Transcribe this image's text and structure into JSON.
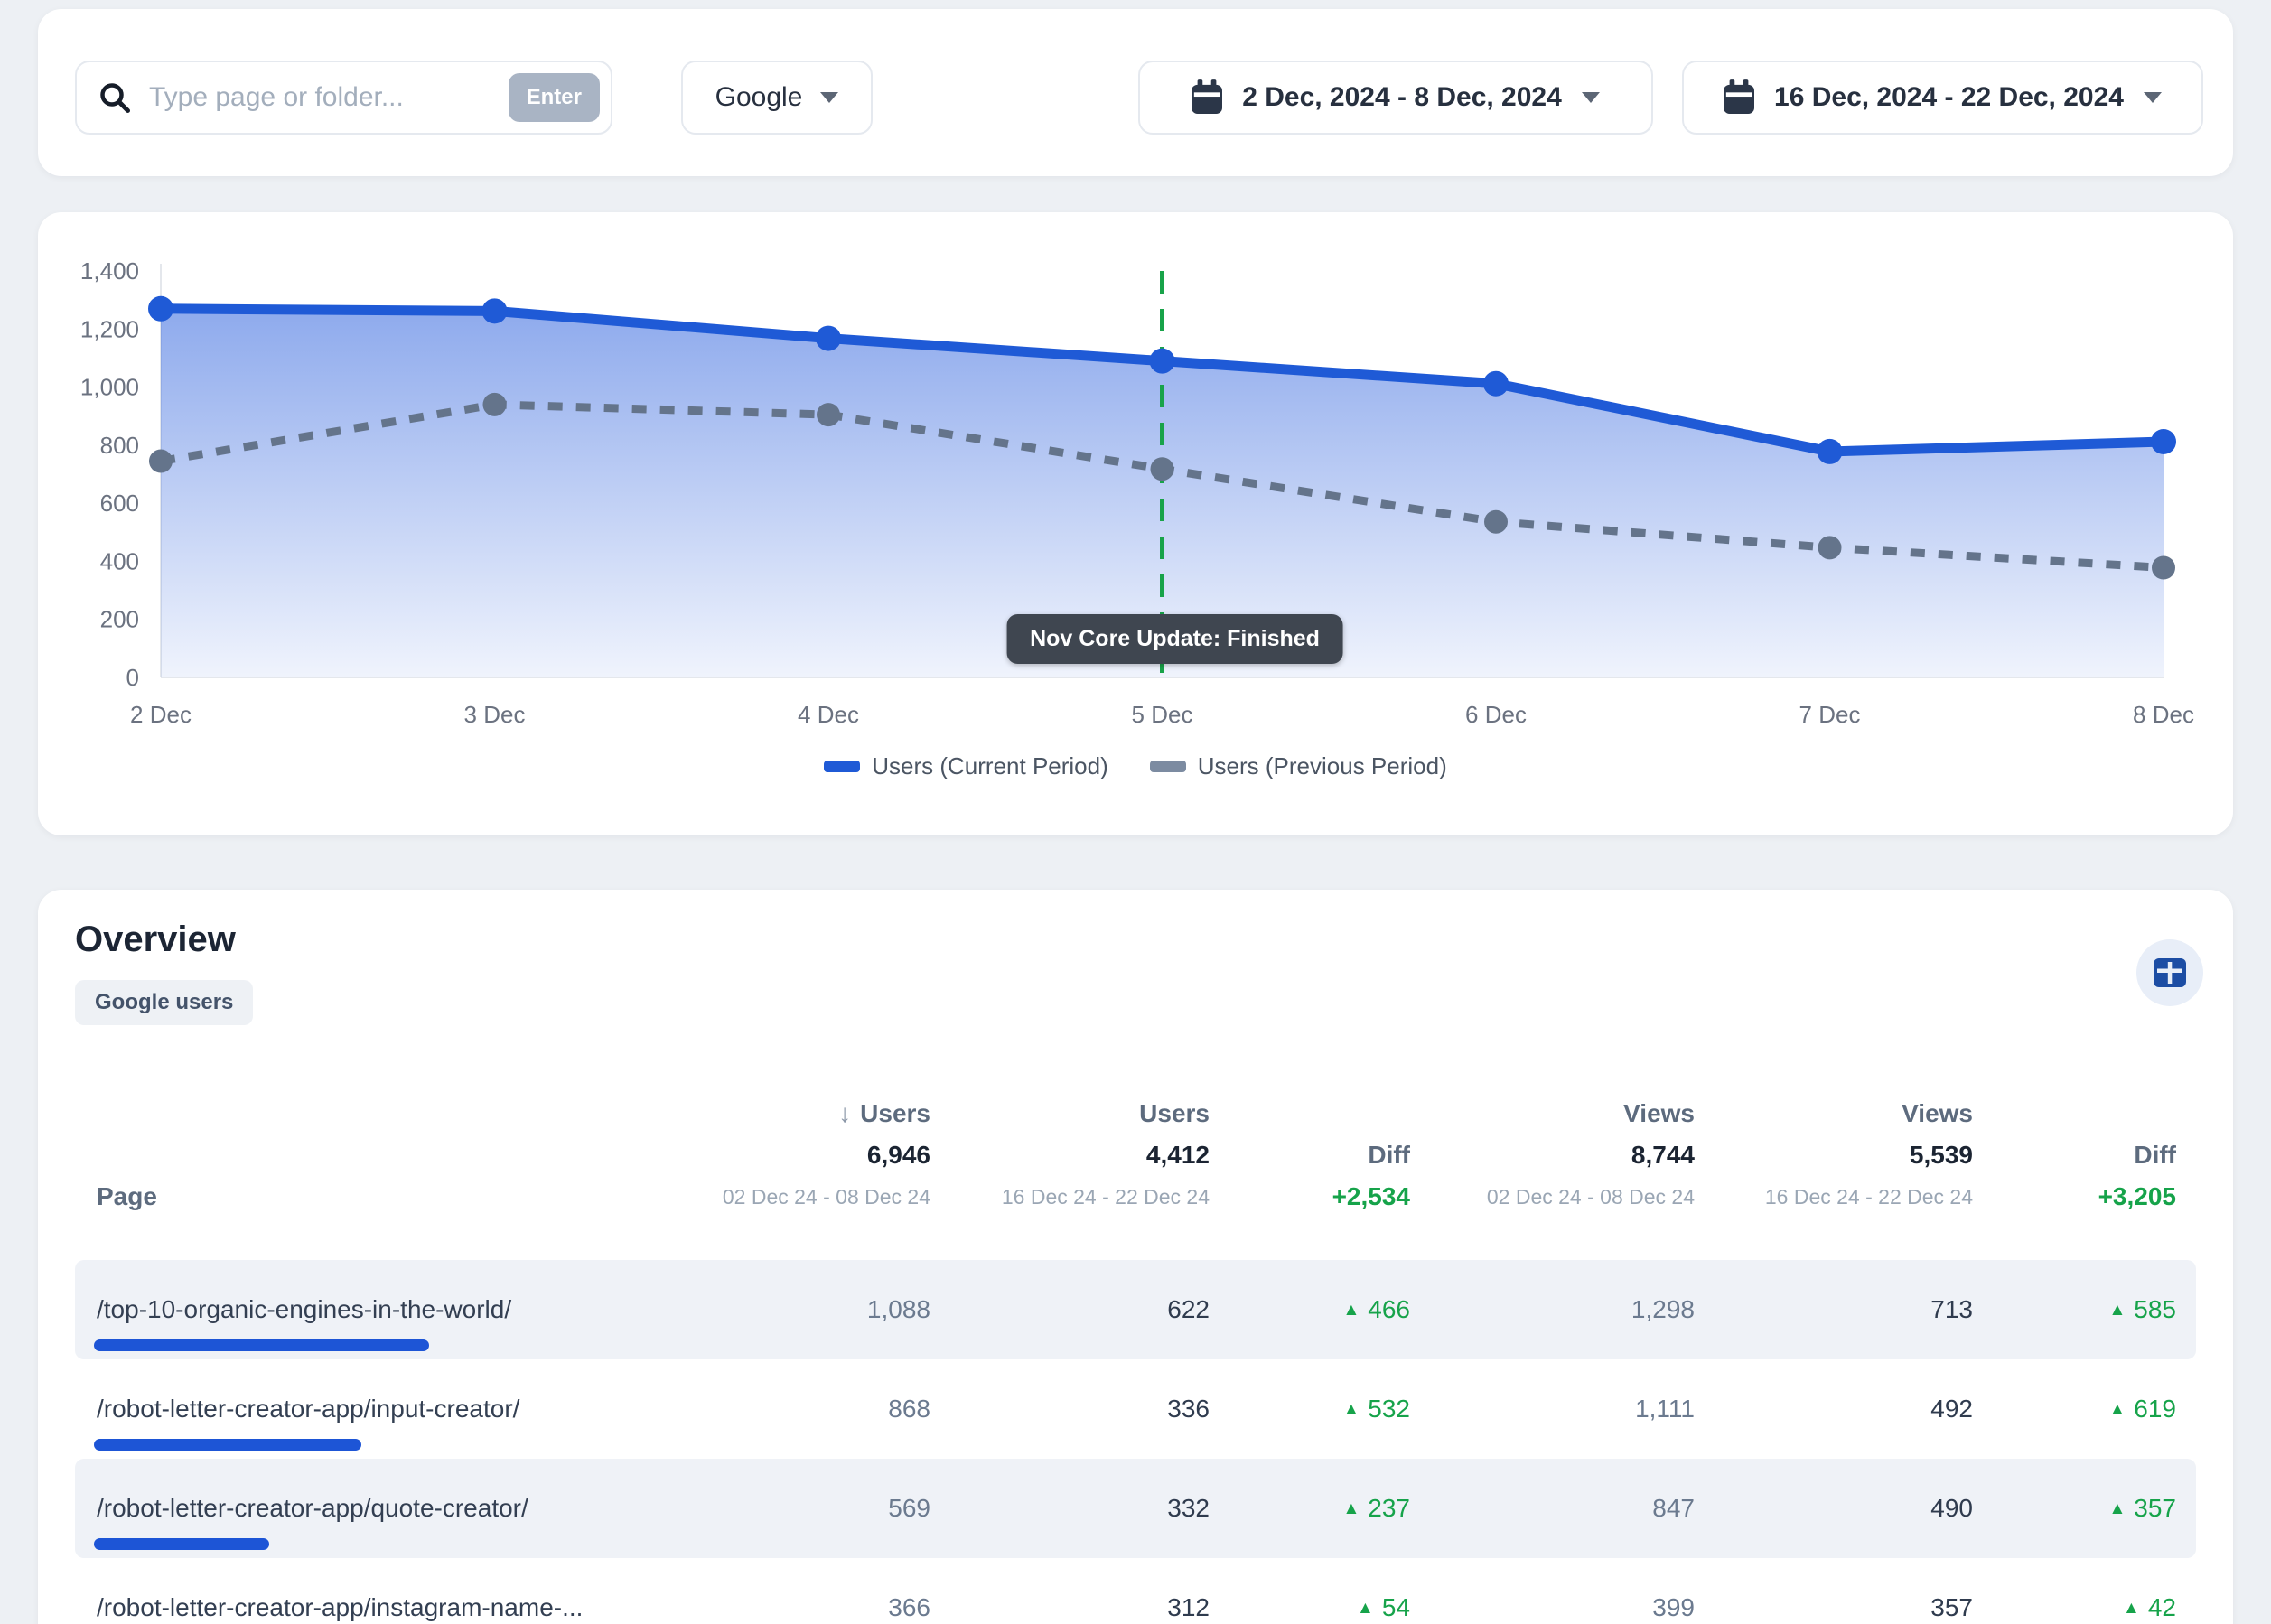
{
  "topbar": {
    "search": {
      "placeholder": "Type page or folder...",
      "kbd_hint": "Enter"
    },
    "engine_select": {
      "value": "Google"
    },
    "date_range_primary": {
      "label": "2 Dec, 2024 - 8 Dec, 2024"
    },
    "date_range_comparison": {
      "label": "16 Dec, 2024 - 22 Dec, 2024"
    }
  },
  "chart_data": {
    "type": "area",
    "x": [
      "2 Dec",
      "3 Dec",
      "4 Dec",
      "5 Dec",
      "6 Dec",
      "7 Dec",
      "8 Dec"
    ],
    "series": [
      {
        "name": "Users (Current Period)",
        "values": [
          1270,
          1262,
          1168,
          1090,
          1012,
          778,
          812
        ],
        "color": "#1f5ad6",
        "style": "solid"
      },
      {
        "name": "Users (Previous Period)",
        "values": [
          745,
          940,
          905,
          718,
          536,
          447,
          378
        ],
        "color": "#64748b",
        "style": "dashed"
      }
    ],
    "ylim": [
      0,
      1400
    ],
    "yticks": [
      0,
      200,
      400,
      600,
      800,
      1000,
      1200,
      1400
    ],
    "grid": false,
    "legend_position": "bottom",
    "annotation": {
      "x": "5 Dec",
      "label": "Nov Core Update: Finished",
      "color": "#18a349"
    }
  },
  "overview": {
    "title": "Overview",
    "badge": "Google users",
    "table": {
      "page_header": "Page",
      "columns": [
        {
          "kind": "metric",
          "label": "Users",
          "total": "6,946",
          "range": "02 Dec 24 - 08 Dec 24",
          "sorted": true
        },
        {
          "kind": "metric",
          "label": "Users",
          "total": "4,412",
          "range": "16 Dec 24 - 22 Dec 24",
          "sorted": false
        },
        {
          "kind": "diff",
          "label": "Diff",
          "total": "+2,534"
        },
        {
          "kind": "metric",
          "label": "Views",
          "total": "8,744",
          "range": "02 Dec 24 - 08 Dec 24",
          "sorted": false
        },
        {
          "kind": "metric",
          "label": "Views",
          "total": "5,539",
          "range": "16 Dec 24 - 22 Dec 24",
          "sorted": false
        },
        {
          "kind": "diff",
          "label": "Diff",
          "total": "+3,205"
        }
      ],
      "rows": [
        {
          "page": "/top-10-organic-engines-in-the-world/",
          "users_current": "1,088",
          "users_compare": "622",
          "users_diff": "466",
          "views_current": "1,298",
          "views_compare": "713",
          "views_diff": "585"
        },
        {
          "page": "/robot-letter-creator-app/input-creator/",
          "users_current": "868",
          "users_compare": "336",
          "users_diff": "532",
          "views_current": "1,111",
          "views_compare": "492",
          "views_diff": "619"
        },
        {
          "page": "/robot-letter-creator-app/quote-creator/",
          "users_current": "569",
          "users_compare": "332",
          "users_diff": "237",
          "views_current": "847",
          "views_compare": "490",
          "views_diff": "357"
        },
        {
          "page": "/robot-letter-creator-app/instagram-name-...",
          "users_current": "366",
          "users_compare": "312",
          "users_diff": "54",
          "views_current": "399",
          "views_compare": "357",
          "views_diff": "42"
        }
      ]
    }
  },
  "icons": {
    "sort_desc": "↓",
    "diff_up": "▲"
  },
  "colors": {
    "accent_blue": "#1f5ad6",
    "bar_blue": "#1d55d6",
    "diff_green": "#16a34a",
    "annotation_green": "#18a349",
    "prev_slate": "#64748b",
    "row_stripe": "#eff2f7"
  }
}
